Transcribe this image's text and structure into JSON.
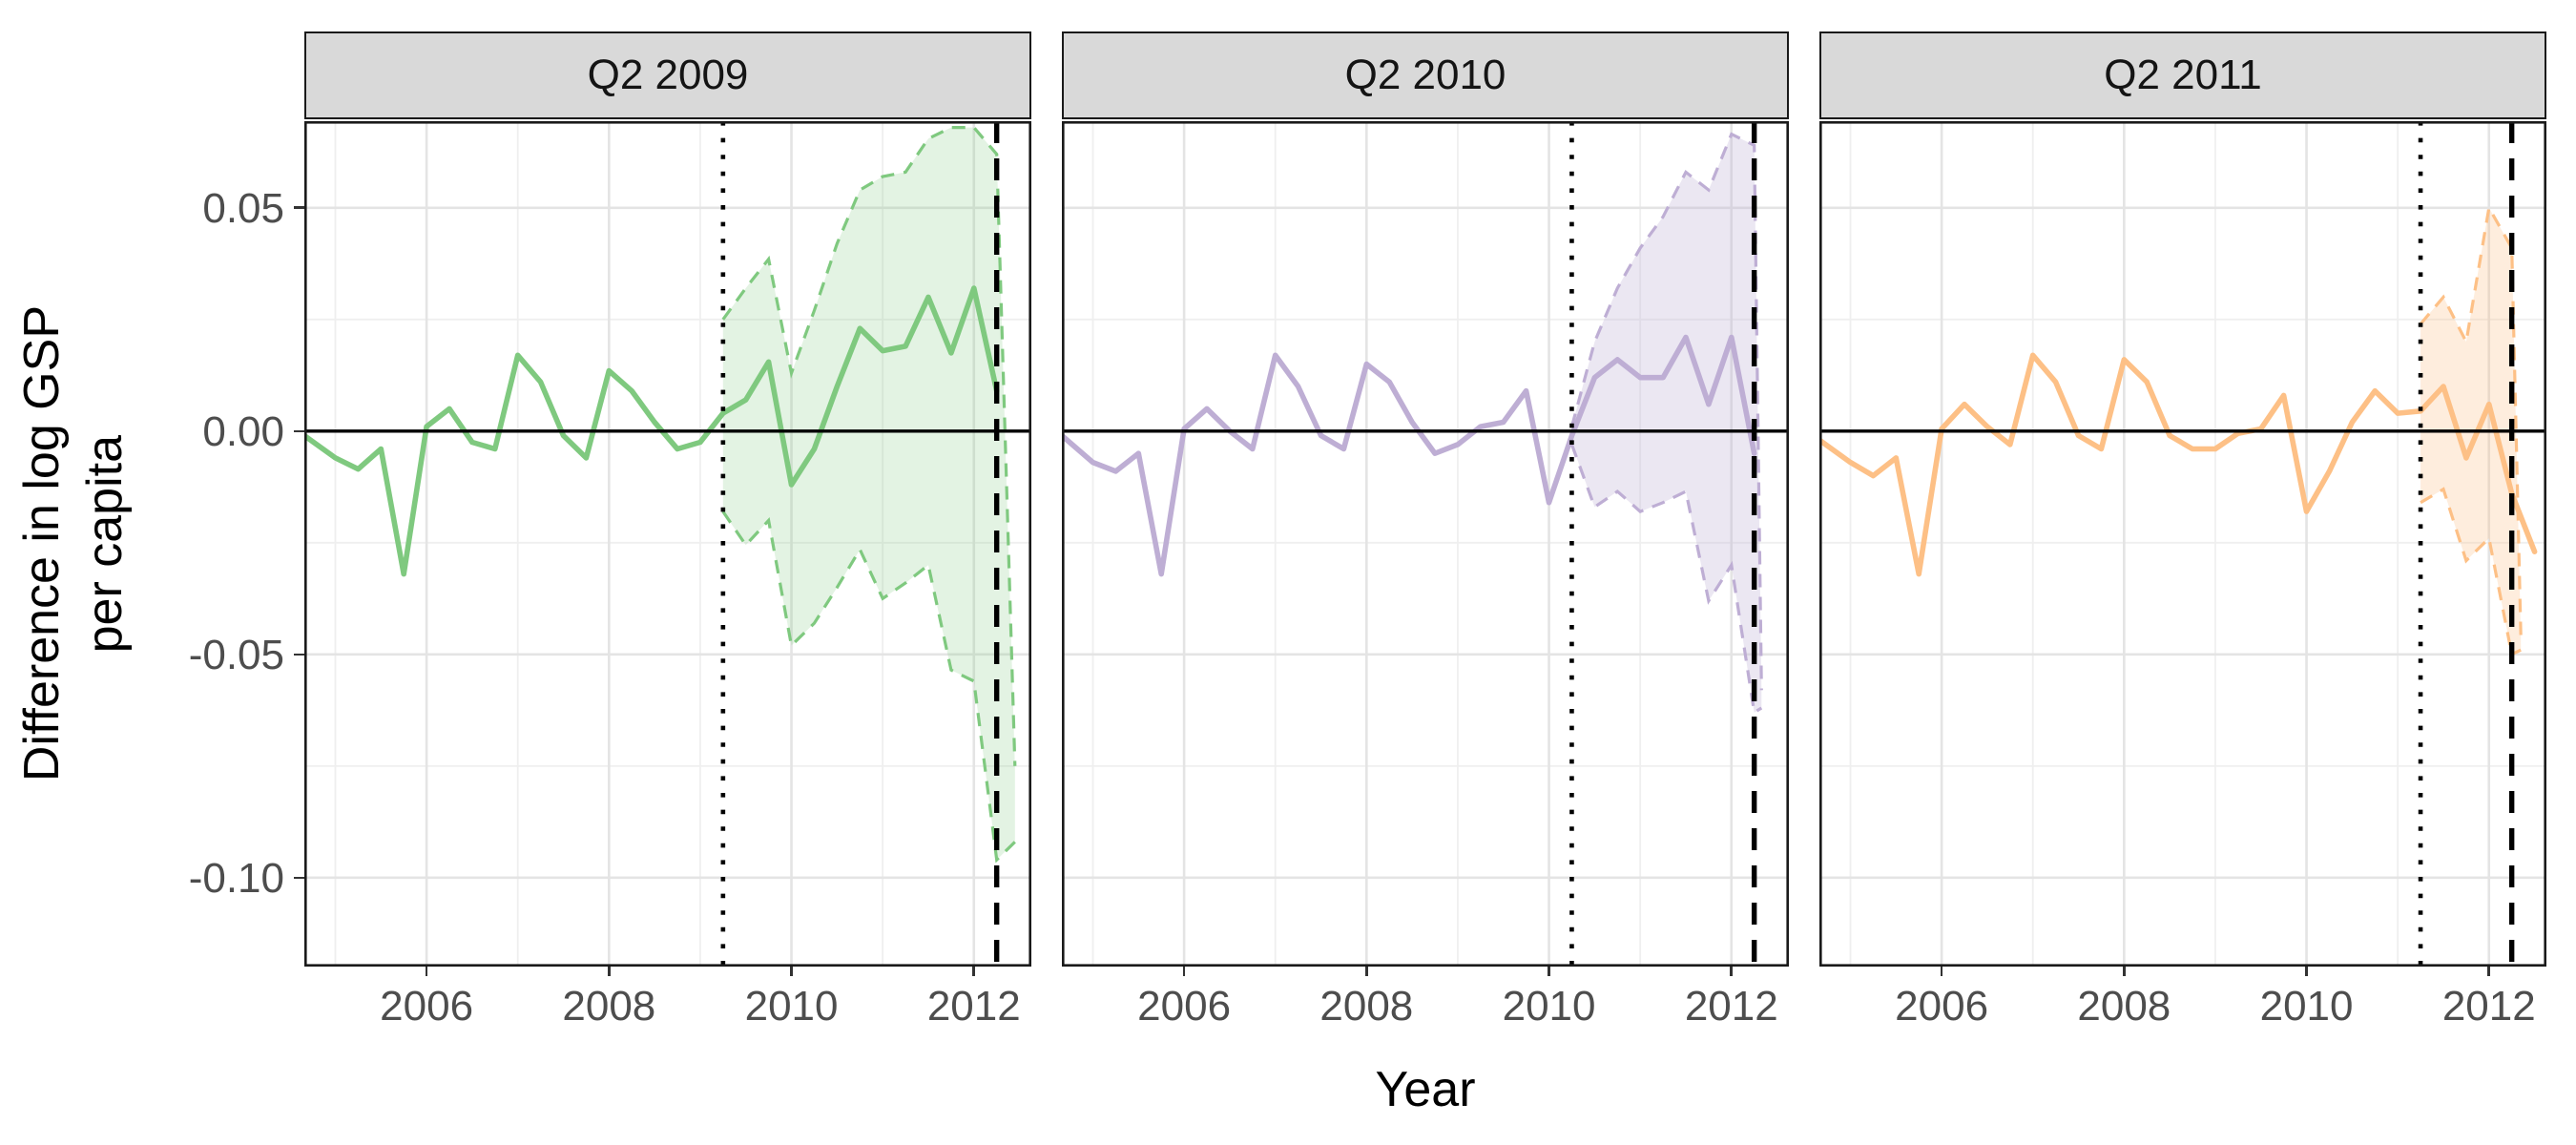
{
  "chart_data": {
    "type": "line",
    "title": "",
    "xlabel": "Year",
    "ylabel_line1": "Difference in log GSP",
    "ylabel_line2": "per capita",
    "x_domain": [
      2004.66,
      2012.63
    ],
    "y_domain": [
      -0.1199,
      0.0694
    ],
    "grid": "on",
    "x_ticks": [
      {
        "value": 2006,
        "label": "2006"
      },
      {
        "value": 2008,
        "label": "2008"
      },
      {
        "value": 2010,
        "label": "2010"
      },
      {
        "value": 2012,
        "label": "2012"
      }
    ],
    "x_minor_ticks": [
      2005,
      2007,
      2009,
      2011
    ],
    "y_ticks": [
      {
        "value": 0.05,
        "label": "0.05"
      },
      {
        "value": 0.0,
        "label": "0.00"
      },
      {
        "value": -0.05,
        "label": "-0.05"
      },
      {
        "value": -0.1,
        "label": "-0.10"
      }
    ],
    "y_minor_ticks": [
      0.025,
      -0.025,
      -0.075
    ],
    "zero_hline": 0,
    "end_of_sample_vline": 2012.25,
    "panels": [
      {
        "facet_label": "Q2 2009",
        "color": "#7fc97f",
        "ribbon_fill": "rgba(127,201,127,0.22)",
        "treatment_vline": 2009.25,
        "line": [
          [
            2004.66,
            -0.001
          ],
          [
            2005.0,
            -0.006
          ],
          [
            2005.25,
            -0.0085
          ],
          [
            2005.5,
            -0.004
          ],
          [
            2005.75,
            -0.032
          ],
          [
            2006.0,
            0.001
          ],
          [
            2006.25,
            0.005
          ],
          [
            2006.5,
            -0.0025
          ],
          [
            2006.75,
            -0.004
          ],
          [
            2007.0,
            0.017
          ],
          [
            2007.25,
            0.011
          ],
          [
            2007.5,
            -0.001
          ],
          [
            2007.75,
            -0.006
          ],
          [
            2008.0,
            0.0135
          ],
          [
            2008.25,
            0.009
          ],
          [
            2008.5,
            0.002
          ],
          [
            2008.75,
            -0.004
          ],
          [
            2009.0,
            -0.0025
          ],
          [
            2009.25,
            0.004
          ],
          [
            2009.5,
            0.007
          ],
          [
            2009.75,
            0.0155
          ],
          [
            2010.0,
            -0.012
          ],
          [
            2010.25,
            -0.004
          ],
          [
            2010.5,
            0.01
          ],
          [
            2010.75,
            0.023
          ],
          [
            2011.0,
            0.018
          ],
          [
            2011.25,
            0.019
          ],
          [
            2011.5,
            0.03
          ],
          [
            2011.75,
            0.0175
          ],
          [
            2012.0,
            0.032
          ],
          [
            2012.25,
            0.009
          ]
        ],
        "ci_upper": [
          [
            2009.25,
            0.025
          ],
          [
            2009.5,
            0.032
          ],
          [
            2009.75,
            0.0385
          ],
          [
            2010.0,
            0.013
          ],
          [
            2010.25,
            0.027
          ],
          [
            2010.5,
            0.042
          ],
          [
            2010.75,
            0.054
          ],
          [
            2011.0,
            0.057
          ],
          [
            2011.25,
            0.058
          ],
          [
            2011.5,
            0.0655
          ],
          [
            2011.75,
            0.068
          ],
          [
            2012.0,
            0.068
          ],
          [
            2012.25,
            0.062
          ],
          [
            2012.45,
            -0.075
          ]
        ],
        "ci_lower": [
          [
            2009.25,
            -0.018
          ],
          [
            2009.5,
            -0.0255
          ],
          [
            2009.75,
            -0.02
          ],
          [
            2010.0,
            -0.048
          ],
          [
            2010.25,
            -0.043
          ],
          [
            2010.5,
            -0.035
          ],
          [
            2010.75,
            -0.0265
          ],
          [
            2011.0,
            -0.0375
          ],
          [
            2011.25,
            -0.034
          ],
          [
            2011.5,
            -0.03
          ],
          [
            2011.75,
            -0.0535
          ],
          [
            2012.0,
            -0.056
          ],
          [
            2012.25,
            -0.096
          ],
          [
            2012.45,
            -0.092
          ]
        ]
      },
      {
        "facet_label": "Q2 2010",
        "color": "#beaed4",
        "ribbon_fill": "rgba(190,174,212,0.30)",
        "treatment_vline": 2010.25,
        "line": [
          [
            2004.66,
            -0.001
          ],
          [
            2005.0,
            -0.007
          ],
          [
            2005.25,
            -0.009
          ],
          [
            2005.5,
            -0.005
          ],
          [
            2005.75,
            -0.032
          ],
          [
            2006.0,
            0.0005
          ],
          [
            2006.25,
            0.005
          ],
          [
            2006.5,
            0.0
          ],
          [
            2006.75,
            -0.004
          ],
          [
            2007.0,
            0.017
          ],
          [
            2007.25,
            0.01
          ],
          [
            2007.5,
            -0.001
          ],
          [
            2007.75,
            -0.004
          ],
          [
            2008.0,
            0.015
          ],
          [
            2008.25,
            0.011
          ],
          [
            2008.5,
            0.002
          ],
          [
            2008.75,
            -0.005
          ],
          [
            2009.0,
            -0.003
          ],
          [
            2009.25,
            0.001
          ],
          [
            2009.5,
            0.002
          ],
          [
            2009.75,
            0.009
          ],
          [
            2010.0,
            -0.016
          ],
          [
            2010.25,
            -0.001
          ],
          [
            2010.5,
            0.012
          ],
          [
            2010.75,
            0.016
          ],
          [
            2011.0,
            0.012
          ],
          [
            2011.25,
            0.012
          ],
          [
            2011.5,
            0.021
          ],
          [
            2011.75,
            0.006
          ],
          [
            2012.0,
            0.021
          ],
          [
            2012.25,
            -0.005
          ]
        ],
        "ci_upper": [
          [
            2010.25,
            0.001
          ],
          [
            2010.5,
            0.02
          ],
          [
            2010.75,
            0.032
          ],
          [
            2011.0,
            0.041
          ],
          [
            2011.25,
            0.048
          ],
          [
            2011.5,
            0.058
          ],
          [
            2011.75,
            0.054
          ],
          [
            2012.0,
            0.0665
          ],
          [
            2012.25,
            0.064
          ],
          [
            2012.33,
            -0.058
          ]
        ],
        "ci_lower": [
          [
            2010.25,
            -0.003
          ],
          [
            2010.5,
            -0.017
          ],
          [
            2010.75,
            -0.0135
          ],
          [
            2011.0,
            -0.018
          ],
          [
            2011.25,
            -0.016
          ],
          [
            2011.5,
            -0.0135
          ],
          [
            2011.75,
            -0.038
          ],
          [
            2012.0,
            -0.03
          ],
          [
            2012.25,
            -0.063
          ],
          [
            2012.33,
            -0.062
          ]
        ]
      },
      {
        "facet_label": "Q2 2011",
        "color": "#fdc086",
        "ribbon_fill": "rgba(253,192,134,0.28)",
        "treatment_vline": 2011.25,
        "line": [
          [
            2004.66,
            -0.002
          ],
          [
            2005.0,
            -0.007
          ],
          [
            2005.25,
            -0.01
          ],
          [
            2005.5,
            -0.006
          ],
          [
            2005.75,
            -0.032
          ],
          [
            2006.0,
            0.0005
          ],
          [
            2006.25,
            0.006
          ],
          [
            2006.5,
            0.001
          ],
          [
            2006.75,
            -0.003
          ],
          [
            2007.0,
            0.017
          ],
          [
            2007.25,
            0.011
          ],
          [
            2007.5,
            -0.001
          ],
          [
            2007.75,
            -0.004
          ],
          [
            2008.0,
            0.016
          ],
          [
            2008.25,
            0.011
          ],
          [
            2008.5,
            -0.001
          ],
          [
            2008.75,
            -0.004
          ],
          [
            2009.0,
            -0.004
          ],
          [
            2009.25,
            -0.0005
          ],
          [
            2009.5,
            0.0005
          ],
          [
            2009.75,
            0.008
          ],
          [
            2010.0,
            -0.018
          ],
          [
            2010.25,
            -0.009
          ],
          [
            2010.5,
            0.002
          ],
          [
            2010.75,
            0.009
          ],
          [
            2011.0,
            0.004
          ],
          [
            2011.25,
            0.0045
          ],
          [
            2011.5,
            0.01
          ],
          [
            2011.75,
            -0.006
          ],
          [
            2012.0,
            0.006
          ],
          [
            2012.25,
            -0.014
          ],
          [
            2012.5,
            -0.027
          ]
        ],
        "ci_upper": [
          [
            2011.25,
            0.024
          ],
          [
            2011.5,
            0.03
          ],
          [
            2011.75,
            0.02
          ],
          [
            2012.0,
            0.05
          ],
          [
            2012.25,
            0.041
          ],
          [
            2012.35,
            -0.046
          ]
        ],
        "ci_lower": [
          [
            2011.25,
            -0.016
          ],
          [
            2011.5,
            -0.013
          ],
          [
            2011.75,
            -0.029
          ],
          [
            2012.0,
            -0.024
          ],
          [
            2012.25,
            -0.05
          ],
          [
            2012.35,
            -0.049
          ]
        ]
      }
    ]
  }
}
